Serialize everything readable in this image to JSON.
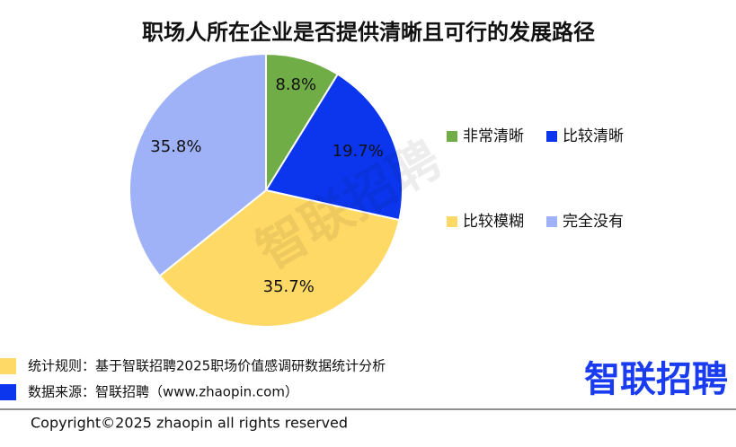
{
  "chart_data": {
    "type": "pie",
    "title": "职场人所在企业是否提供清晰且可行的发展路径",
    "categories": [
      "非常清晰",
      "比较清晰",
      "比较模糊",
      "完全没有"
    ],
    "values": [
      8.8,
      19.7,
      35.7,
      35.8
    ],
    "value_labels": [
      "8.8%",
      "19.7%",
      "35.7%",
      "35.8%"
    ],
    "colors": [
      "#70ad47",
      "#0b36ee",
      "#ffd966",
      "#9fb1f7"
    ],
    "watermark": "智联招聘"
  },
  "footer": {
    "notes": [
      "统计规则：基于智联招聘2025职场价值感调研数据统计分析",
      "数据来源：智联招聘（www.zhaopin.com）"
    ],
    "logo": "智联招聘",
    "copyright": "Copyright©2025 zhaopin all rights reserved"
  }
}
